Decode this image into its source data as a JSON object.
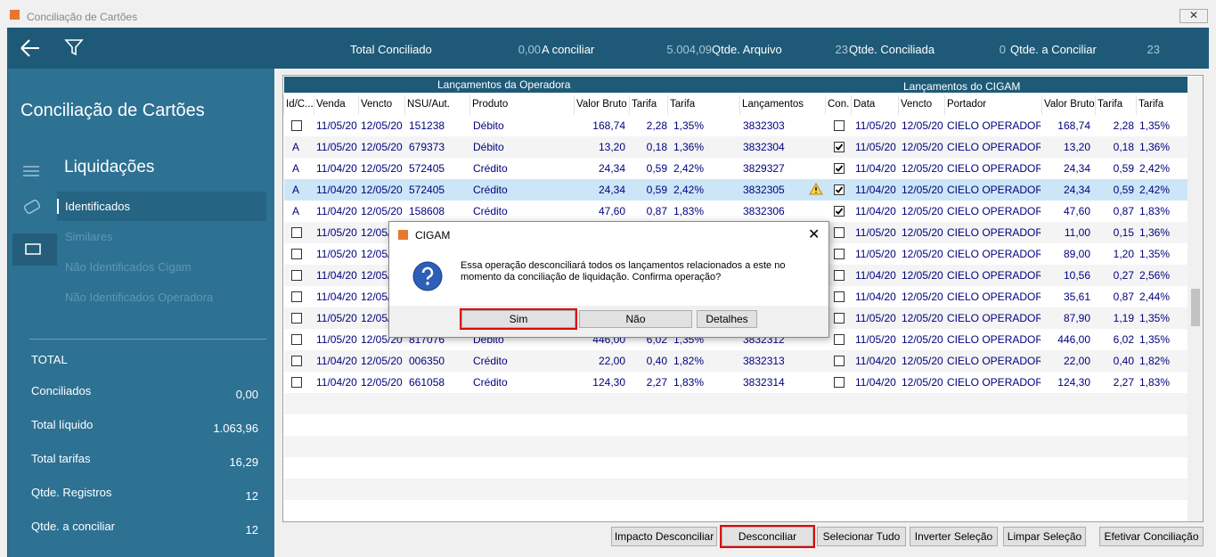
{
  "window": {
    "title": "Conciliação de Cartões"
  },
  "summary": [
    {
      "label": "Total Conciliado",
      "value": "0,00"
    },
    {
      "label": "A conciliar",
      "value": "5.004,09"
    },
    {
      "label": "Qtde. Arquivo",
      "value": "23"
    },
    {
      "label": "Qtde. Conciliada",
      "value": "0"
    },
    {
      "label": "Qtde. a Conciliar",
      "value": "23"
    }
  ],
  "sidebar": {
    "title": "Conciliação de Cartões",
    "section": "Liquidações",
    "menu": [
      "Identificados",
      "Similares",
      "Não Identificados Cigam",
      "Não Identificados Operadora"
    ],
    "totals_title": "TOTAL",
    "totals": [
      {
        "label": "Conciliados",
        "value": "0,00"
      },
      {
        "label": "Total líquido",
        "value": "1.063,96"
      },
      {
        "label": "Total tarifas",
        "value": "16,29"
      },
      {
        "label": "Qtde. Registros",
        "value": "12"
      },
      {
        "label": "Qtde. a conciliar",
        "value": "12"
      }
    ]
  },
  "grid": {
    "groups": [
      "Lançamentos da Operadora",
      "Lançamentos do CIGAM"
    ],
    "columns": [
      "Id/C...",
      "Venda",
      "Vencto",
      "NSU/Aut.",
      "Produto",
      "Valor Bruto",
      "Tarifa",
      "Tarifa",
      "Lançamentos",
      "Con.",
      "Data",
      "Vencto",
      "Portador",
      "Valor Bruto",
      "Tarifa",
      "Tarifa"
    ],
    "rows": [
      {
        "left": [
          "11/05/20",
          "12/05/20",
          "151238",
          "Débito",
          "168,74",
          "2,28",
          "1,35%",
          "3832303"
        ],
        "con": false,
        "right": [
          "11/05/20",
          "12/05/20",
          "CIELO OPERADORA E",
          "168,74",
          "2,28",
          "1,35%"
        ]
      },
      {
        "id": "A",
        "left": [
          "11/05/20",
          "12/05/20",
          "679373",
          "Débito",
          "13,20",
          "0,18",
          "1,36%",
          "3832304"
        ],
        "con": true,
        "right": [
          "11/05/20",
          "12/05/20",
          "CIELO OPERADORA E",
          "13,20",
          "0,18",
          "1,36%"
        ]
      },
      {
        "id": "A",
        "left": [
          "11/04/20",
          "12/05/20",
          "572405",
          "Crédito",
          "24,34",
          "0,59",
          "2,42%",
          "3829327"
        ],
        "con": true,
        "right": [
          "11/04/20",
          "12/05/20",
          "CIELO OPERADORA E",
          "24,34",
          "0,59",
          "2,42%"
        ]
      },
      {
        "id": "A",
        "selected": true,
        "warning": true,
        "left": [
          "11/04/20",
          "12/05/20",
          "572405",
          "Crédito",
          "24,34",
          "0,59",
          "2,42%",
          "3832305"
        ],
        "con": true,
        "right": [
          "11/04/20",
          "12/05/20",
          "CIELO OPERADORA E",
          "24,34",
          "0,59",
          "2,42%"
        ]
      },
      {
        "id": "A",
        "left": [
          "11/04/20",
          "12/05/20",
          "158608",
          "Crédito",
          "47,60",
          "0,87",
          "1,83%",
          "3832306"
        ],
        "con": true,
        "right": [
          "11/04/20",
          "12/05/20",
          "CIELO OPERADORA E",
          "47,60",
          "0,87",
          "1,83%"
        ]
      },
      {
        "left": [
          "11/05/20",
          "12/05/20",
          null,
          null,
          null,
          null,
          null,
          null
        ],
        "con": false,
        "right": [
          "11/05/20",
          "12/05/20",
          "CIELO OPERADORA E",
          "11,00",
          "0,15",
          "1,36%"
        ]
      },
      {
        "left": [
          "11/05/20",
          "12/05/20",
          null,
          null,
          null,
          null,
          null,
          null
        ],
        "con": false,
        "right": [
          "11/05/20",
          "12/05/20",
          "CIELO OPERADORA E",
          "89,00",
          "1,20",
          "1,35%"
        ]
      },
      {
        "left": [
          "11/04/20",
          "12/05/20",
          null,
          null,
          null,
          null,
          null,
          null
        ],
        "con": false,
        "right": [
          "11/04/20",
          "12/05/20",
          "CIELO OPERADORA E",
          "10,56",
          "0,27",
          "2,56%"
        ]
      },
      {
        "left": [
          "11/04/20",
          "12/05/20",
          null,
          null,
          null,
          null,
          null,
          null
        ],
        "con": false,
        "right": [
          "11/04/20",
          "12/05/20",
          "CIELO OPERADORA E",
          "35,61",
          "0,87",
          "2,44%"
        ]
      },
      {
        "left": [
          "11/05/20",
          "12/05/20",
          null,
          null,
          null,
          null,
          null,
          null
        ],
        "con": false,
        "right": [
          "11/05/20",
          "12/05/20",
          "CIELO OPERADORA E",
          "87,90",
          "1,19",
          "1,35%"
        ]
      },
      {
        "left": [
          "11/05/20",
          "12/05/20",
          "817076",
          "Débito",
          "446,00",
          "6,02",
          "1,35%",
          "3832312"
        ],
        "con": false,
        "right": [
          "11/05/20",
          "12/05/20",
          "CIELO OPERADORA E",
          "446,00",
          "6,02",
          "1,35%"
        ]
      },
      {
        "left": [
          "11/04/20",
          "12/05/20",
          "006350",
          "Crédito",
          "22,00",
          "0,40",
          "1,82%",
          "3832313"
        ],
        "con": false,
        "right": [
          "11/04/20",
          "12/05/20",
          "CIELO OPERADORA E",
          "22,00",
          "0,40",
          "1,82%"
        ]
      },
      {
        "left": [
          "11/04/20",
          "12/05/20",
          "661058",
          "Crédito",
          "124,30",
          "2,27",
          "1,83%",
          "3832314"
        ],
        "con": false,
        "right": [
          "11/04/20",
          "12/05/20",
          "CIELO OPERADORA E",
          "124,30",
          "2,27",
          "1,83%"
        ]
      }
    ]
  },
  "buttons": [
    "Impacto Desconciliar",
    "Desconciliar",
    "Selecionar Tudo",
    "Inverter Seleção",
    "Limpar Seleção",
    "Efetivar Conciliação"
  ],
  "dialog": {
    "title": "CIGAM",
    "message": "Essa operação desconciliará todos os lançamentos relacionados a este no momento da conciliação de liquidação. Confirma operação?",
    "buttons": [
      "Sim",
      "Não",
      "Detalhes"
    ]
  }
}
